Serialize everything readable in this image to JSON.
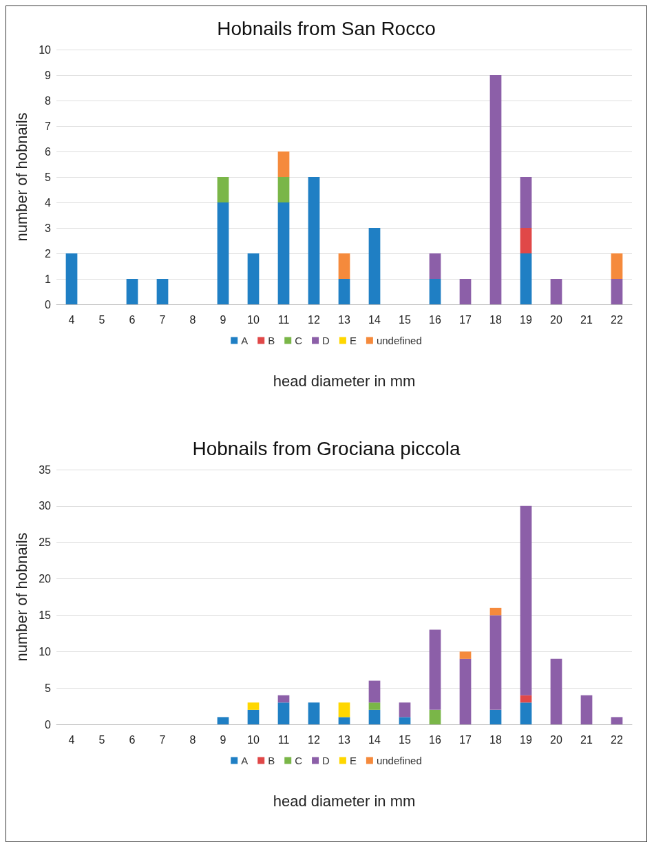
{
  "chart_data": [
    {
      "type": "bar",
      "title": "Hobnails from San Rocco",
      "xlabel": "head diameter in mm",
      "ylabel": "number of hobnails",
      "categories": [
        "4",
        "5",
        "6",
        "7",
        "8",
        "9",
        "10",
        "11",
        "12",
        "13",
        "14",
        "15",
        "16",
        "17",
        "18",
        "19",
        "20",
        "21",
        "22"
      ],
      "stacked": true,
      "ylim": [
        0,
        10
      ],
      "yticks": [
        0,
        1,
        2,
        3,
        4,
        5,
        6,
        7,
        8,
        9,
        10
      ],
      "grid": "y",
      "legend": "bottom",
      "series": [
        {
          "name": "A",
          "color": "#1f7fc4",
          "values": [
            2,
            0,
            1,
            1,
            0,
            4,
            2,
            4,
            5,
            1,
            3,
            0,
            1,
            0,
            0,
            2,
            0,
            0,
            0
          ]
        },
        {
          "name": "B",
          "color": "#e04848",
          "values": [
            0,
            0,
            0,
            0,
            0,
            0,
            0,
            0,
            0,
            0,
            0,
            0,
            0,
            0,
            0,
            1,
            0,
            0,
            0
          ]
        },
        {
          "name": "C",
          "color": "#7ab648",
          "values": [
            0,
            0,
            0,
            0,
            0,
            1,
            0,
            1,
            0,
            0,
            0,
            0,
            0,
            0,
            0,
            0,
            0,
            0,
            0
          ]
        },
        {
          "name": "D",
          "color": "#8c5fa8",
          "values": [
            0,
            0,
            0,
            0,
            0,
            0,
            0,
            0,
            0,
            0,
            0,
            0,
            1,
            1,
            9,
            2,
            1,
            0,
            1
          ]
        },
        {
          "name": "E",
          "color": "#ffd700",
          "values": [
            0,
            0,
            0,
            0,
            0,
            0,
            0,
            0,
            0,
            0,
            0,
            0,
            0,
            0,
            0,
            0,
            0,
            0,
            0
          ]
        },
        {
          "name": "undefined",
          "color": "#f58a3c",
          "values": [
            0,
            0,
            0,
            0,
            0,
            0,
            0,
            1,
            0,
            1,
            0,
            0,
            0,
            0,
            0,
            0,
            0,
            0,
            1
          ]
        }
      ]
    },
    {
      "type": "bar",
      "title": "Hobnails from Grociana piccola",
      "xlabel": "head diameter in mm",
      "ylabel": "number of hobnails",
      "categories": [
        "4",
        "5",
        "6",
        "7",
        "8",
        "9",
        "10",
        "11",
        "12",
        "13",
        "14",
        "15",
        "16",
        "17",
        "18",
        "19",
        "20",
        "21",
        "22"
      ],
      "stacked": true,
      "ylim": [
        0,
        35
      ],
      "yticks": [
        0,
        5,
        10,
        15,
        20,
        25,
        30,
        35
      ],
      "grid": "y",
      "legend": "bottom",
      "series": [
        {
          "name": "A",
          "color": "#1f7fc4",
          "values": [
            0,
            0,
            0,
            0,
            0,
            1,
            2,
            3,
            3,
            1,
            2,
            1,
            0,
            0,
            2,
            3,
            0,
            0,
            0
          ]
        },
        {
          "name": "B",
          "color": "#e04848",
          "values": [
            0,
            0,
            0,
            0,
            0,
            0,
            0,
            0,
            0,
            0,
            0,
            0,
            0,
            0,
            0,
            1,
            0,
            0,
            0
          ]
        },
        {
          "name": "C",
          "color": "#7ab648",
          "values": [
            0,
            0,
            0,
            0,
            0,
            0,
            0,
            0,
            0,
            0,
            1,
            0,
            2,
            0,
            0,
            0,
            0,
            0,
            0
          ]
        },
        {
          "name": "D",
          "color": "#8c5fa8",
          "values": [
            0,
            0,
            0,
            0,
            0,
            0,
            0,
            1,
            0,
            0,
            3,
            2,
            11,
            9,
            13,
            26,
            9,
            4,
            1
          ]
        },
        {
          "name": "E",
          "color": "#ffd700",
          "values": [
            0,
            0,
            0,
            0,
            0,
            0,
            1,
            0,
            0,
            2,
            0,
            0,
            0,
            0,
            0,
            0,
            0,
            0,
            0
          ]
        },
        {
          "name": "undefined",
          "color": "#f58a3c",
          "values": [
            0,
            0,
            0,
            0,
            0,
            0,
            0,
            0,
            0,
            0,
            0,
            0,
            0,
            1,
            1,
            0,
            0,
            0,
            0
          ]
        }
      ]
    }
  ]
}
